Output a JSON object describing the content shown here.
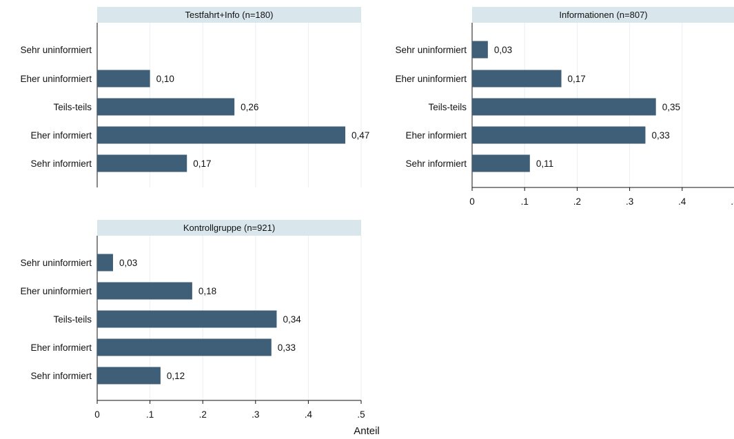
{
  "chart_data": {
    "type": "bar",
    "orientation": "horizontal",
    "categories": [
      "Sehr uninformiert",
      "Eher uninformiert",
      "Teils-teils",
      "Eher informiert",
      "Sehr informiert"
    ],
    "xlabel": "Anteil",
    "xlim": [
      0,
      0.5
    ],
    "xticks": [
      0,
      0.1,
      0.2,
      0.3,
      0.4,
      0.5
    ],
    "xtick_labels": [
      "0",
      ".1",
      ".2",
      ".3",
      ".4",
      ".5"
    ],
    "grid": "vertical",
    "bar_color": "#3f5f78",
    "strip_color": "#d9e6ec",
    "panels": [
      {
        "title": "Testfahrt+Info (n=180)",
        "values": [
          null,
          0.1,
          0.26,
          0.47,
          0.17
        ],
        "value_labels": [
          "",
          "0,10",
          "0,26",
          "0,47",
          "0,17"
        ],
        "show_xaxis": false
      },
      {
        "title": "Informationen (n=807)",
        "values": [
          0.03,
          0.17,
          0.35,
          0.33,
          0.11
        ],
        "value_labels": [
          "0,03",
          "0,17",
          "0,35",
          "0,33",
          "0,11"
        ],
        "show_xaxis": true
      },
      {
        "title": "Kontrollgruppe (n=921)",
        "values": [
          0.03,
          0.18,
          0.34,
          0.33,
          0.12
        ],
        "value_labels": [
          "0,03",
          "0,18",
          "0,34",
          "0,33",
          "0,12"
        ],
        "show_xaxis": true
      }
    ]
  }
}
